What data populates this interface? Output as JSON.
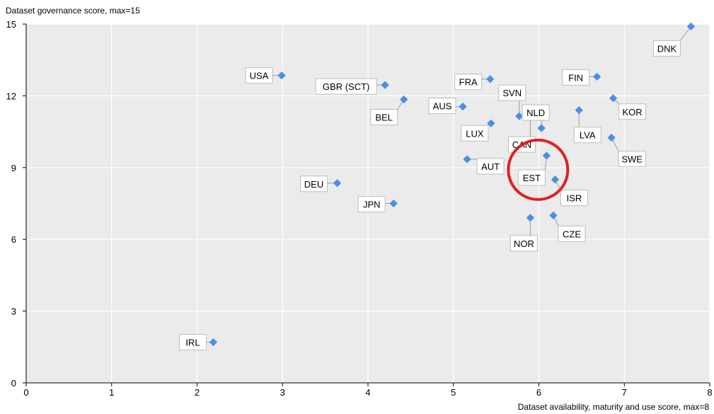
{
  "chart_data": {
    "type": "scatter",
    "xlabel": "Dataset availability, maturity and use score, max=8",
    "ylabel": "Dataset governance score, max=15",
    "xlim": [
      0,
      8
    ],
    "ylim": [
      0,
      15
    ],
    "xticks": [
      "0",
      "1",
      "2",
      "3",
      "4",
      "5",
      "6",
      "7",
      "8"
    ],
    "yticks": [
      "0",
      "3",
      "6",
      "9",
      "12",
      "15"
    ],
    "grid": true,
    "point_color": "#4a90e2",
    "highlight": {
      "label": "EST",
      "color": "#e02020"
    },
    "points": [
      {
        "label": "DNK",
        "x": 7.78,
        "y": 14.9
      },
      {
        "label": "USA",
        "x": 2.99,
        "y": 12.85
      },
      {
        "label": "GBR (SCT)",
        "x": 4.2,
        "y": 12.45
      },
      {
        "label": "FRA",
        "x": 5.43,
        "y": 12.7
      },
      {
        "label": "FIN",
        "x": 6.68,
        "y": 12.8
      },
      {
        "label": "BEL",
        "x": 4.42,
        "y": 11.85
      },
      {
        "label": "AUS",
        "x": 5.11,
        "y": 11.55
      },
      {
        "label": "SVN",
        "x": 5.77,
        "y": 11.15
      },
      {
        "label": "NLD",
        "x": 6.03,
        "y": 10.65
      },
      {
        "label": "CAN",
        "x": 5.9,
        "y": 11.15
      },
      {
        "label": "KOR",
        "x": 6.87,
        "y": 11.9
      },
      {
        "label": "LUX",
        "x": 5.44,
        "y": 10.85
      },
      {
        "label": "LVA",
        "x": 6.47,
        "y": 11.4
      },
      {
        "label": "SWE",
        "x": 6.85,
        "y": 10.25
      },
      {
        "label": "AUT",
        "x": 5.16,
        "y": 9.35
      },
      {
        "label": "EST",
        "x": 6.09,
        "y": 9.5
      },
      {
        "label": "ISR",
        "x": 6.19,
        "y": 8.5
      },
      {
        "label": "DEU",
        "x": 3.64,
        "y": 8.35
      },
      {
        "label": "JPN",
        "x": 4.3,
        "y": 7.5
      },
      {
        "label": "NOR",
        "x": 5.9,
        "y": 6.9
      },
      {
        "label": "CZE",
        "x": 6.17,
        "y": 7.0
      },
      {
        "label": "IRL",
        "x": 2.19,
        "y": 1.7
      }
    ]
  }
}
